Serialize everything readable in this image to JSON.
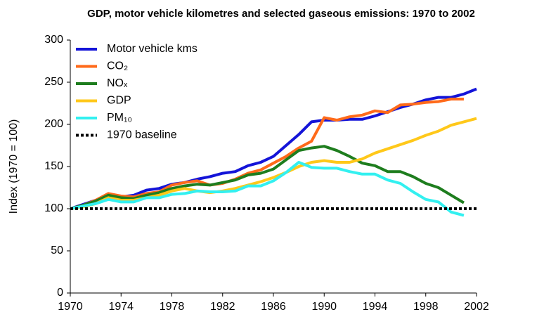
{
  "chart_data": {
    "type": "line",
    "title": "GDP, motor vehicle kilometres and selected gaseous emissions: 1970 to 2002",
    "y_label": "Index (1970 = 100)",
    "x": [
      1970,
      1971,
      1972,
      1973,
      1974,
      1975,
      1976,
      1977,
      1978,
      1979,
      1980,
      1981,
      1982,
      1983,
      1984,
      1985,
      1986,
      1987,
      1988,
      1989,
      1990,
      1991,
      1992,
      1993,
      1994,
      1995,
      1996,
      1997,
      1998,
      1999,
      2000,
      2001,
      2002
    ],
    "series": [
      {
        "name": "Motor vehicle kms",
        "color": "#1414d8",
        "values": [
          100,
          105,
          110,
          116,
          114,
          116,
          122,
          124,
          129,
          131,
          135,
          138,
          142,
          144,
          151,
          155,
          162,
          175,
          188,
          203,
          205,
          205,
          206,
          206,
          210,
          215,
          220,
          224,
          229,
          232,
          232,
          236,
          242
        ]
      },
      {
        "name": "CO₂",
        "color": "#ff6a1a",
        "values": [
          100,
          104,
          110,
          118,
          115,
          114,
          118,
          120,
          128,
          131,
          133,
          128,
          130,
          135,
          142,
          146,
          154,
          162,
          172,
          180,
          208,
          205,
          209,
          211,
          216,
          214,
          223,
          224,
          226,
          227,
          230,
          230,
          null
        ]
      },
      {
        "name": "NOₓ",
        "color": "#1e7d1e",
        "values": [
          100,
          104,
          109,
          116,
          113,
          112,
          116,
          119,
          124,
          127,
          129,
          128,
          131,
          134,
          140,
          142,
          147,
          158,
          169,
          172,
          174,
          169,
          162,
          154,
          151,
          144,
          144,
          138,
          130,
          125,
          116,
          107,
          null
        ]
      },
      {
        "name": "GDP",
        "color": "#ffc81a",
        "values": [
          100,
          102,
          106,
          113,
          110,
          110,
          113,
          116,
          121,
          124,
          121,
          119,
          121,
          124,
          128,
          132,
          137,
          143,
          150,
          155,
          157,
          155,
          155,
          159,
          166,
          171,
          176,
          181,
          187,
          192,
          199,
          203,
          207
        ]
      },
      {
        "name": "PM₁₀",
        "color": "#33f0f0",
        "values": [
          100,
          103,
          106,
          111,
          108,
          108,
          113,
          113,
          117,
          118,
          121,
          120,
          120,
          121,
          127,
          127,
          133,
          143,
          155,
          149,
          148,
          148,
          144,
          141,
          141,
          134,
          130,
          120,
          111,
          108,
          96,
          92,
          null
        ]
      }
    ],
    "baseline": {
      "name": "1970 baseline",
      "value": 100,
      "color": "#000000"
    },
    "xlim": [
      1970,
      2002
    ],
    "xticks": [
      1970,
      1974,
      1978,
      1982,
      1986,
      1990,
      1994,
      1998,
      2002
    ],
    "ylim": [
      0,
      300
    ],
    "yticks": [
      0,
      50,
      100,
      150,
      200,
      250,
      300
    ],
    "legend": "upper left"
  }
}
